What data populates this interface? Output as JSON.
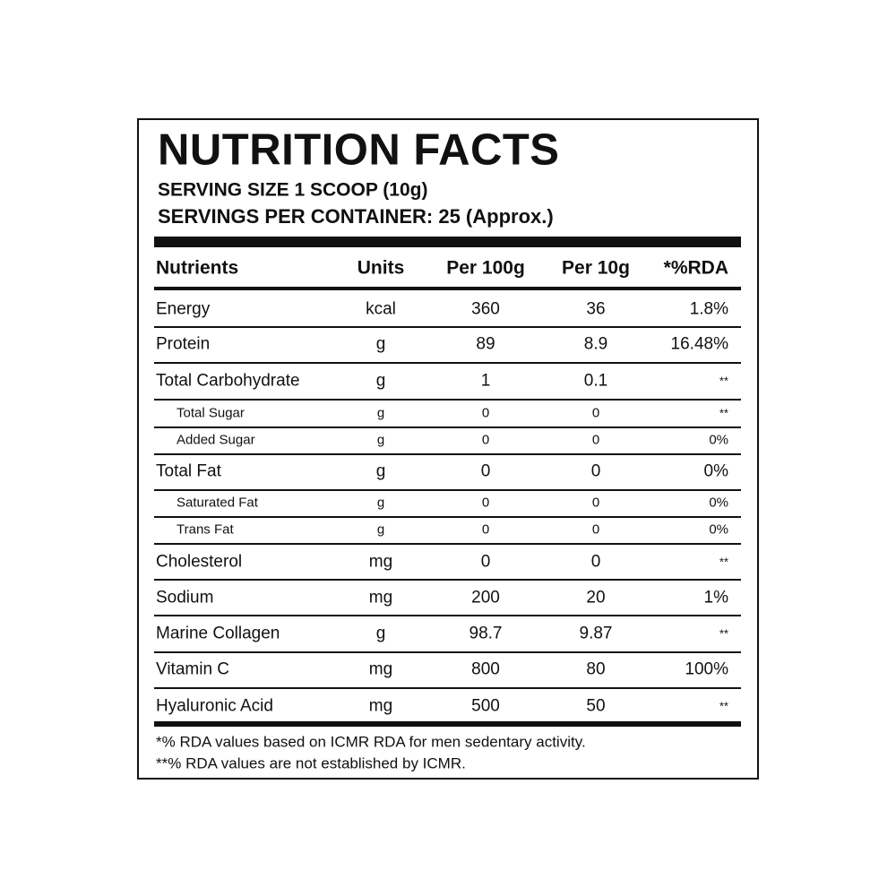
{
  "header": {
    "title": "NUTRITION FACTS",
    "serving_size": "SERVING SIZE 1 SCOOP (10g)",
    "servings_per_container": "SERVINGS PER CONTAINER: 25 (Approx.)"
  },
  "table": {
    "columns": [
      "Nutrients",
      "Units",
      "Per 100g",
      "Per 10g",
      "*%RDA"
    ],
    "rows": [
      [
        "Energy",
        "kcal",
        "360",
        "36",
        "1.8%"
      ],
      [
        "Protein",
        "g",
        "89",
        "8.9",
        "16.48%"
      ],
      [
        "Total Carbohydrate",
        "g",
        "1",
        "0.1",
        "**"
      ],
      [
        "Total Sugar",
        "g",
        "0",
        "0",
        "**"
      ],
      [
        "Added Sugar",
        "g",
        "0",
        "0",
        "0%"
      ],
      [
        "Total Fat",
        "g",
        "0",
        "0",
        "0%"
      ],
      [
        "Saturated Fat",
        "g",
        "0",
        "0",
        "0%"
      ],
      [
        "Trans Fat",
        "g",
        "0",
        "0",
        "0%"
      ],
      [
        "Cholesterol",
        "mg",
        "0",
        "0",
        "**"
      ],
      [
        "Sodium",
        "mg",
        "200",
        "20",
        "1%"
      ],
      [
        "Marine Collagen",
        "g",
        "98.7",
        "9.87",
        "**"
      ],
      [
        "Vitamin C",
        "mg",
        "800",
        "80",
        "100%"
      ],
      [
        "Hyaluronic Acid",
        "mg",
        "500",
        "50",
        "**"
      ]
    ]
  },
  "footnotes": [
    "*% RDA values based on ICMR RDA for men sedentary activity.",
    "**% RDA values are not established by ICMR."
  ]
}
